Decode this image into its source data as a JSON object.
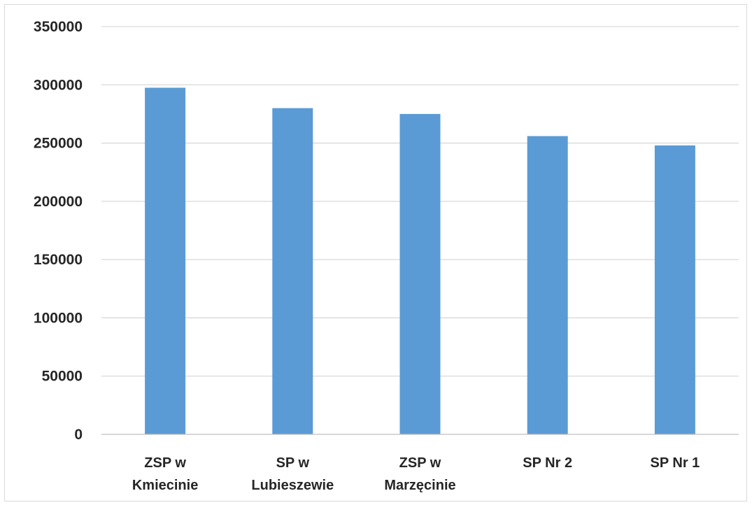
{
  "chart_data": {
    "type": "bar",
    "categories": [
      [
        "ZSP w",
        "Kmiecinie"
      ],
      [
        "SP w",
        "Lubieszewie"
      ],
      [
        "ZSP w",
        "Marzęcinie"
      ],
      [
        "SP Nr 2"
      ],
      [
        "SP Nr 1"
      ]
    ],
    "values": [
      297500,
      280000,
      275000,
      256000,
      248000
    ],
    "ylim": [
      0,
      350000
    ],
    "yticks": [
      "0",
      "50000",
      "100000",
      "150000",
      "200000",
      "250000",
      "300000",
      "350000"
    ],
    "ytick_values": [
      0,
      50000,
      100000,
      150000,
      200000,
      250000,
      300000,
      350000
    ],
    "grid": true,
    "legend": "none",
    "bar_color": "#5b9bd5"
  }
}
